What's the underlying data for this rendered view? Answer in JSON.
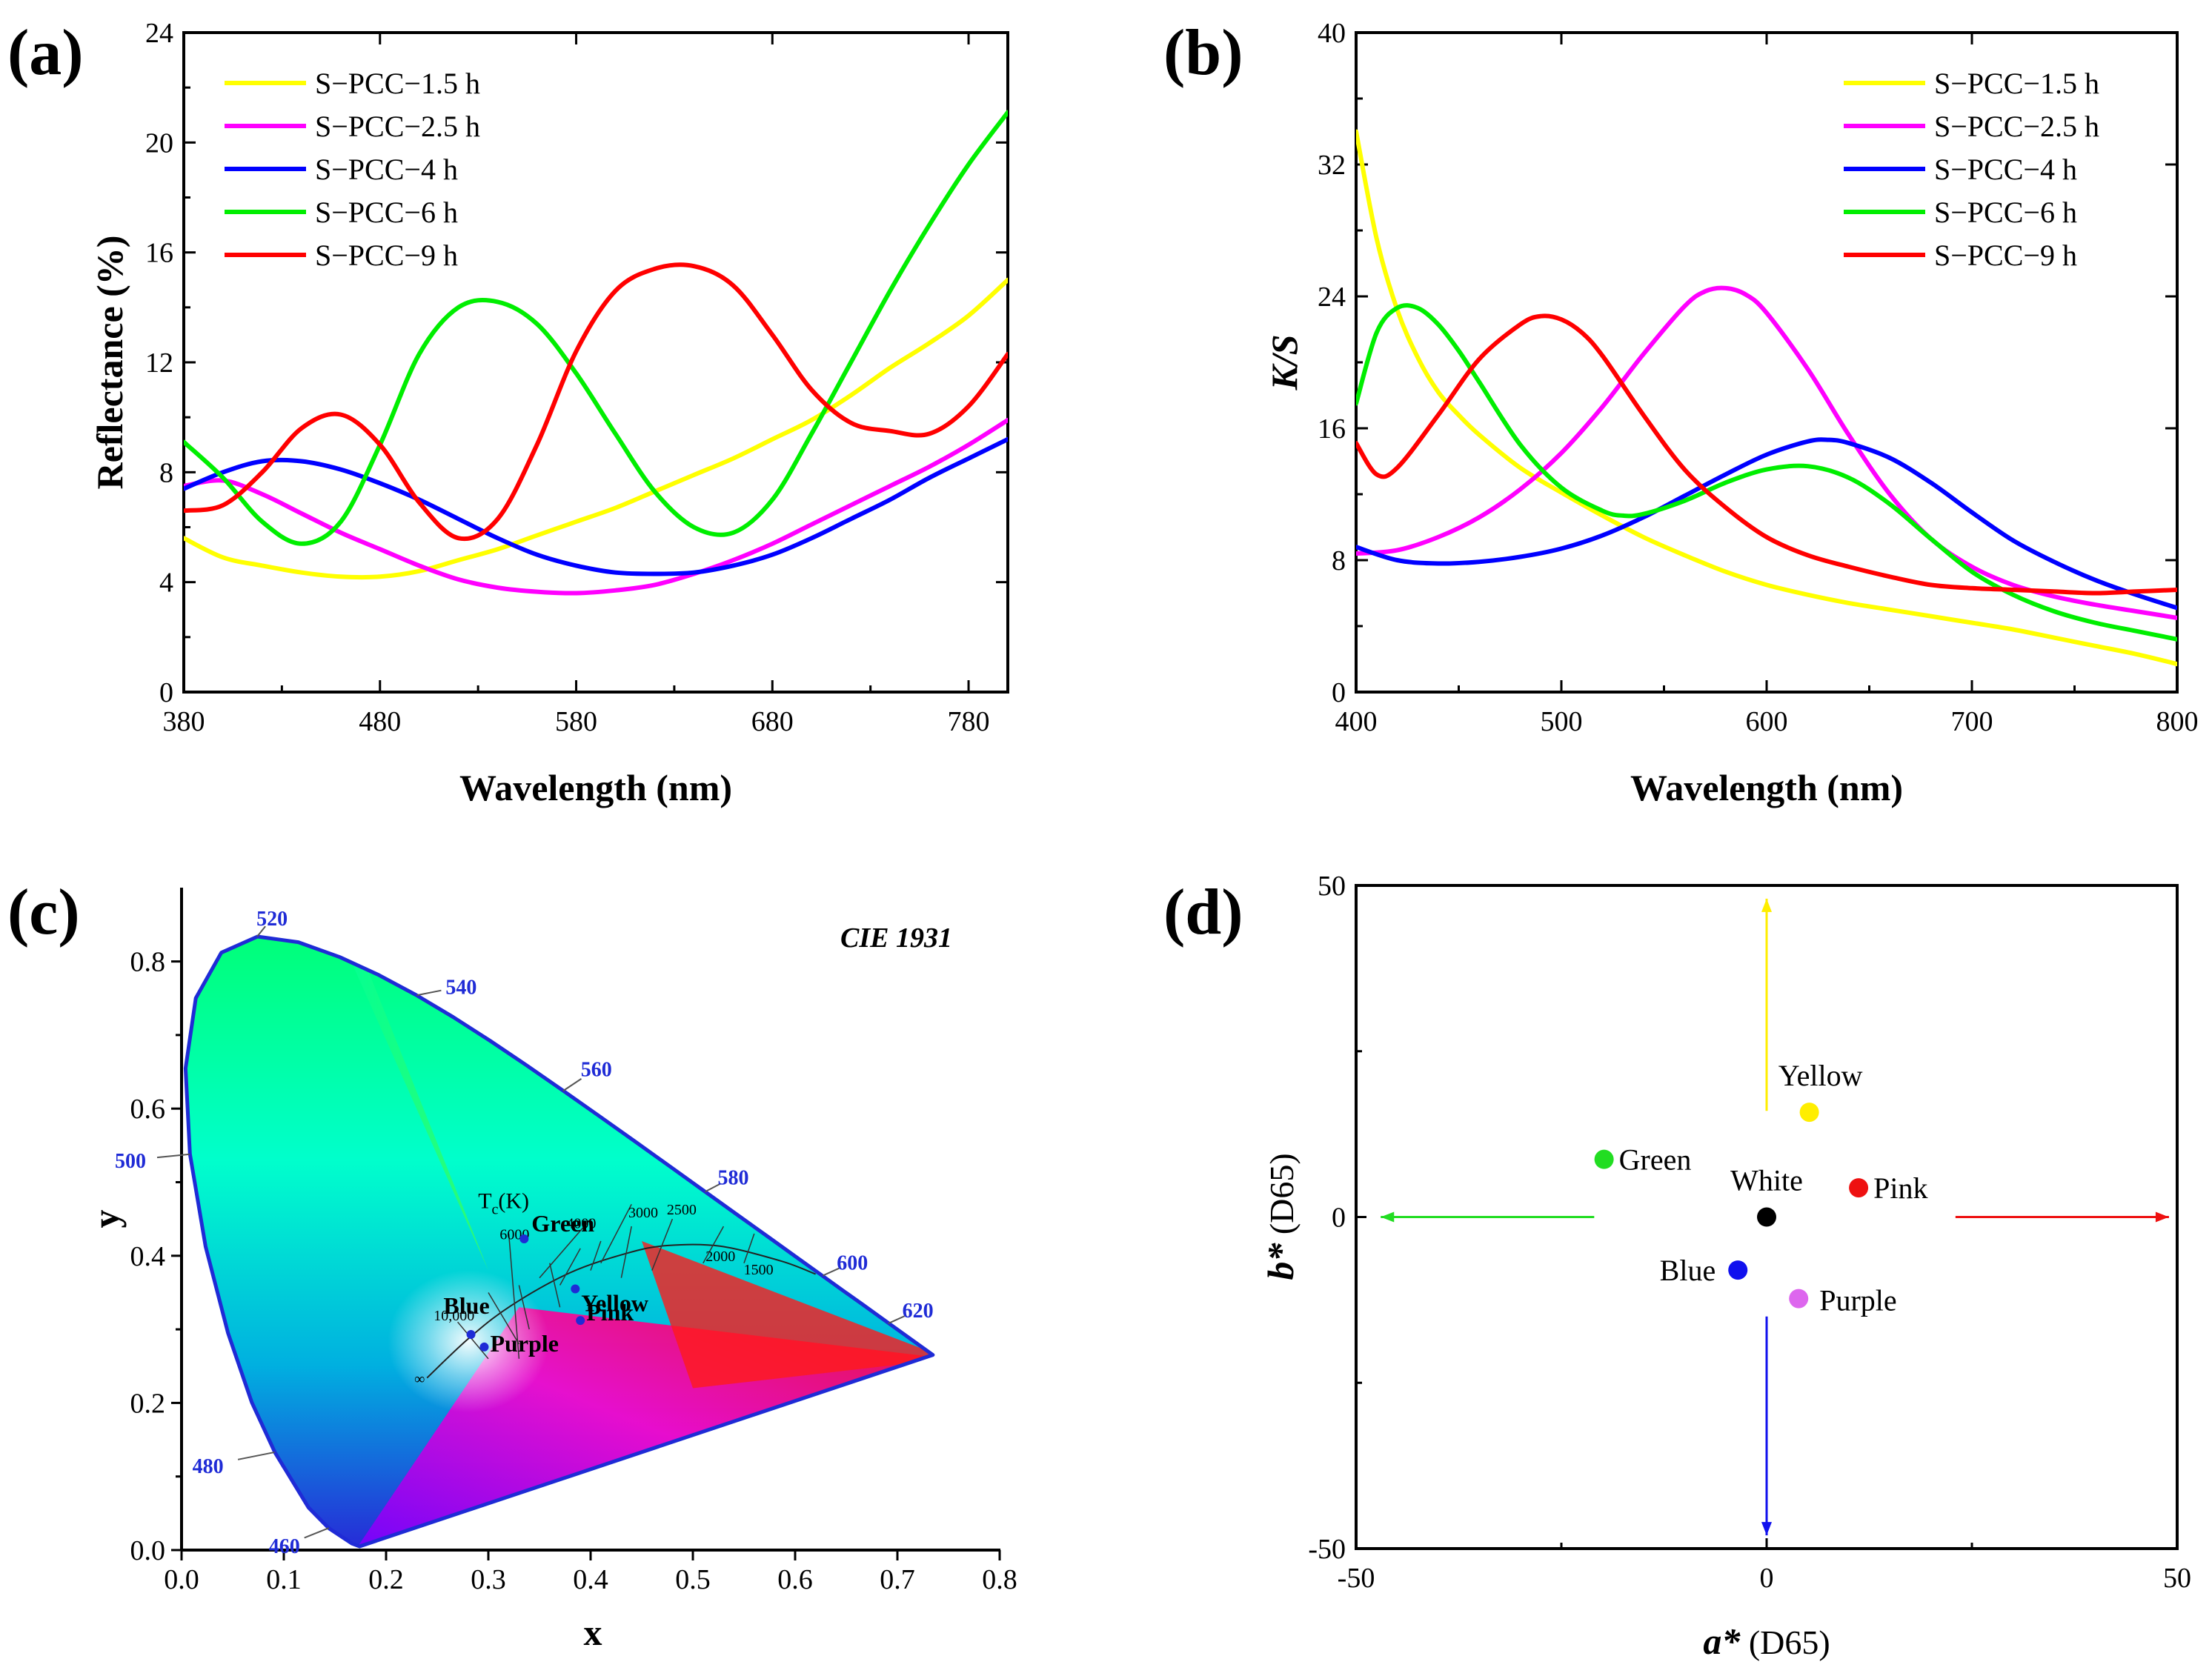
{
  "chart_data": [
    {
      "panel": "(a)",
      "type": "line",
      "xlabel": "Wavelength (nm)",
      "ylabel": "Reflectance (%)",
      "xlim": [
        380,
        800
      ],
      "ylim": [
        0,
        24
      ],
      "xticks": [
        380,
        480,
        580,
        680,
        780
      ],
      "yticks": [
        0,
        4,
        8,
        12,
        16,
        20,
        24
      ],
      "legend": "top-left",
      "series": [
        {
          "name": "S−PCC−1.5 h",
          "color": "#ffff00",
          "x": [
            380,
            400,
            420,
            440,
            460,
            480,
            500,
            520,
            540,
            560,
            580,
            600,
            620,
            640,
            660,
            680,
            700,
            720,
            740,
            760,
            780,
            800
          ],
          "y": [
            5.6,
            4.9,
            4.6,
            4.35,
            4.2,
            4.2,
            4.4,
            4.8,
            5.2,
            5.7,
            6.2,
            6.7,
            7.3,
            7.9,
            8.5,
            9.2,
            9.9,
            10.8,
            11.8,
            12.7,
            13.7,
            15.0
          ]
        },
        {
          "name": "S−PCC−2.5 h",
          "color": "#ff00ff",
          "x": [
            380,
            400,
            420,
            440,
            460,
            480,
            500,
            520,
            540,
            560,
            580,
            600,
            620,
            640,
            660,
            680,
            700,
            720,
            740,
            760,
            780,
            800
          ],
          "y": [
            7.5,
            7.7,
            7.2,
            6.5,
            5.8,
            5.2,
            4.6,
            4.1,
            3.8,
            3.65,
            3.6,
            3.7,
            3.9,
            4.3,
            4.8,
            5.4,
            6.1,
            6.8,
            7.5,
            8.2,
            9.0,
            9.9
          ]
        },
        {
          "name": "S−PCC−4 h",
          "color": "#0000ff",
          "x": [
            380,
            400,
            420,
            440,
            460,
            480,
            500,
            520,
            540,
            560,
            580,
            600,
            620,
            640,
            660,
            680,
            700,
            720,
            740,
            760,
            780,
            800
          ],
          "y": [
            7.4,
            8.0,
            8.4,
            8.4,
            8.1,
            7.6,
            7.0,
            6.3,
            5.6,
            5.0,
            4.6,
            4.35,
            4.3,
            4.35,
            4.6,
            5.0,
            5.6,
            6.3,
            7.0,
            7.8,
            8.5,
            9.2
          ]
        },
        {
          "name": "S−PCC−6 h",
          "color": "#00ee00",
          "x": [
            380,
            400,
            420,
            440,
            460,
            480,
            500,
            520,
            540,
            560,
            580,
            600,
            620,
            640,
            660,
            680,
            700,
            720,
            740,
            760,
            780,
            800
          ],
          "y": [
            9.1,
            7.8,
            6.2,
            5.4,
            6.2,
            9.0,
            12.3,
            14.0,
            14.2,
            13.4,
            11.6,
            9.4,
            7.3,
            6.0,
            5.8,
            7.0,
            9.4,
            12.0,
            14.6,
            17.0,
            19.2,
            21.1
          ]
        },
        {
          "name": "S−PCC−9 h",
          "color": "#ff0000",
          "x": [
            380,
            400,
            420,
            440,
            460,
            480,
            500,
            520,
            540,
            560,
            580,
            600,
            620,
            640,
            660,
            680,
            700,
            720,
            740,
            760,
            780,
            800
          ],
          "y": [
            6.6,
            6.8,
            8.0,
            9.6,
            10.1,
            9.0,
            6.9,
            5.6,
            6.3,
            9.0,
            12.4,
            14.6,
            15.4,
            15.5,
            14.8,
            13.0,
            11.0,
            9.8,
            9.5,
            9.4,
            10.4,
            12.3
          ]
        }
      ]
    },
    {
      "panel": "(b)",
      "type": "line",
      "xlabel": "Wavelength (nm)",
      "ylabel": "K/S",
      "xlim": [
        400,
        800
      ],
      "ylim": [
        0,
        40
      ],
      "xticks": [
        400,
        500,
        600,
        700,
        800
      ],
      "yticks": [
        0,
        8,
        16,
        24,
        32,
        40
      ],
      "legend": "top-right",
      "series": [
        {
          "name": "S−PCC−1.5 h",
          "color": "#ffff00",
          "x": [
            400,
            410,
            420,
            430,
            440,
            450,
            460,
            480,
            500,
            520,
            540,
            560,
            580,
            600,
            620,
            640,
            660,
            680,
            700,
            720,
            740,
            760,
            780,
            800
          ],
          "y": [
            34,
            27.5,
            23.2,
            20.3,
            18.2,
            16.8,
            15.6,
            13.6,
            12.1,
            10.7,
            9.4,
            8.3,
            7.3,
            6.5,
            5.9,
            5.4,
            5.0,
            4.6,
            4.2,
            3.8,
            3.3,
            2.8,
            2.3,
            1.7
          ]
        },
        {
          "name": "S−PCC−2.5 h",
          "color": "#ff00ff",
          "x": [
            400,
            420,
            440,
            460,
            480,
            500,
            520,
            540,
            560,
            570,
            580,
            590,
            600,
            620,
            640,
            660,
            680,
            700,
            720,
            740,
            760,
            780,
            800
          ],
          "y": [
            8.4,
            8.6,
            9.4,
            10.6,
            12.3,
            14.5,
            17.3,
            20.5,
            23.4,
            24.3,
            24.5,
            24.1,
            23.0,
            19.6,
            15.6,
            12.0,
            9.3,
            7.6,
            6.5,
            5.8,
            5.3,
            4.9,
            4.5
          ]
        },
        {
          "name": "S−PCC−4 h",
          "color": "#0000ff",
          "x": [
            400,
            420,
            440,
            460,
            480,
            500,
            520,
            540,
            560,
            580,
            600,
            620,
            630,
            640,
            660,
            680,
            700,
            720,
            740,
            760,
            780,
            800
          ],
          "y": [
            8.8,
            8.0,
            7.8,
            7.9,
            8.2,
            8.7,
            9.5,
            10.6,
            11.9,
            13.2,
            14.4,
            15.2,
            15.3,
            15.1,
            14.2,
            12.7,
            10.9,
            9.2,
            7.9,
            6.8,
            5.9,
            5.1
          ]
        },
        {
          "name": "S−PCC−6 h",
          "color": "#00ee00",
          "x": [
            400,
            410,
            420,
            430,
            440,
            450,
            460,
            480,
            500,
            520,
            530,
            540,
            560,
            580,
            600,
            620,
            640,
            660,
            680,
            700,
            720,
            740,
            760,
            780,
            800
          ],
          "y": [
            17.5,
            21.8,
            23.3,
            23.3,
            22.3,
            20.7,
            18.8,
            15.0,
            12.4,
            11.0,
            10.7,
            10.8,
            11.6,
            12.7,
            13.5,
            13.7,
            13.0,
            11.4,
            9.3,
            7.3,
            5.9,
            4.9,
            4.2,
            3.7,
            3.2
          ]
        },
        {
          "name": "S−PCC−9 h",
          "color": "#ff0000",
          "x": [
            400,
            410,
            420,
            440,
            460,
            480,
            490,
            500,
            510,
            520,
            540,
            560,
            580,
            600,
            620,
            640,
            660,
            680,
            700,
            720,
            740,
            760,
            780,
            800
          ],
          "y": [
            15.1,
            13.2,
            13.6,
            16.8,
            20.2,
            22.3,
            22.8,
            22.6,
            21.8,
            20.4,
            16.8,
            13.5,
            11.2,
            9.4,
            8.3,
            7.6,
            7.0,
            6.5,
            6.3,
            6.2,
            6.1,
            6.0,
            6.1,
            6.2
          ]
        }
      ]
    },
    {
      "panel": "(c)",
      "type": "scatter",
      "title": "CIE 1931",
      "xlabel": "x",
      "ylabel": "y",
      "xlim": [
        0.0,
        0.8
      ],
      "ylim": [
        0.0,
        0.9
      ],
      "xticks": [
        0.0,
        0.1,
        0.2,
        0.3,
        0.4,
        0.5,
        0.6,
        0.7,
        0.8
      ],
      "yticks": [
        0.0,
        0.2,
        0.4,
        0.6,
        0.8
      ],
      "wavelength_labels": [
        {
          "nm": "460",
          "x": 0.144,
          "y": 0.03
        },
        {
          "nm": "480",
          "x": 0.091,
          "y": 0.133
        },
        {
          "nm": "500",
          "x": 0.008,
          "y": 0.538
        },
        {
          "nm": "520",
          "x": 0.074,
          "y": 0.834
        },
        {
          "nm": "540",
          "x": 0.23,
          "y": 0.754
        },
        {
          "nm": "560",
          "x": 0.373,
          "y": 0.624
        },
        {
          "nm": "580",
          "x": 0.512,
          "y": 0.487
        },
        {
          "nm": "600",
          "x": 0.627,
          "y": 0.373
        },
        {
          "nm": "620",
          "x": 0.691,
          "y": 0.308
        }
      ],
      "planckian_label": "T",
      "planckian_label_sub": "c",
      "planckian_label_unit": "(K)",
      "cct_labels": [
        {
          "text": "10,000",
          "x": 0.281,
          "y": 0.288
        },
        {
          "text": "6000",
          "x": 0.322,
          "y": 0.332
        },
        {
          "text": "4000",
          "x": 0.38,
          "y": 0.377
        },
        {
          "text": "3000",
          "x": 0.437,
          "y": 0.404
        },
        {
          "text": "2500",
          "x": 0.476,
          "y": 0.414
        },
        {
          "text": "2000",
          "x": 0.527,
          "y": 0.413
        },
        {
          "text": "1500",
          "x": 0.586,
          "y": 0.393
        },
        {
          "text": "∞",
          "x": 0.24,
          "y": 0.234
        }
      ],
      "points": [
        {
          "name": "Green",
          "x": 0.335,
          "y": 0.423
        },
        {
          "name": "Yellow",
          "x": 0.385,
          "y": 0.355
        },
        {
          "name": "Pink",
          "x": 0.39,
          "y": 0.312
        },
        {
          "name": "Blue",
          "x": 0.283,
          "y": 0.293
        },
        {
          "name": "Purple",
          "x": 0.296,
          "y": 0.276
        }
      ]
    },
    {
      "panel": "(d)",
      "type": "scatter",
      "xlabel_main": "a*",
      "xlabel_suffix": " (D65)",
      "ylabel_main": "b*",
      "ylabel_suffix": " (D65)",
      "xlim": [
        -50,
        50
      ],
      "ylim": [
        -50,
        50
      ],
      "xticks": [
        -50,
        0,
        50
      ],
      "yticks": [
        -50,
        0,
        50
      ],
      "points": [
        {
          "name": "Yellow",
          "a": 5.2,
          "b": 15.8,
          "color": "#ffee00",
          "label_pos": "above"
        },
        {
          "name": "Green",
          "a": -19.8,
          "b": 8.7,
          "color": "#22dd22",
          "label_pos": "right"
        },
        {
          "name": "Pink",
          "a": 11.2,
          "b": 4.4,
          "color": "#ee1111",
          "label_pos": "right"
        },
        {
          "name": "White",
          "a": 0.0,
          "b": 0.0,
          "color": "#000000",
          "label_pos": "above"
        },
        {
          "name": "Blue",
          "a": -3.5,
          "b": -8.0,
          "color": "#1111ee",
          "label_pos": "left"
        },
        {
          "name": "Purple",
          "a": 3.9,
          "b": -12.3,
          "color": "#dd66ee",
          "label_pos": "right"
        }
      ],
      "arrows": [
        {
          "direction": "up",
          "color": "#ffee00"
        },
        {
          "direction": "down",
          "color": "#1111ee"
        },
        {
          "direction": "left",
          "color": "#22dd22"
        },
        {
          "direction": "right",
          "color": "#ee1111"
        }
      ]
    }
  ],
  "panel_labels": [
    "(a)",
    "(b)",
    "(c)",
    "(d)"
  ]
}
